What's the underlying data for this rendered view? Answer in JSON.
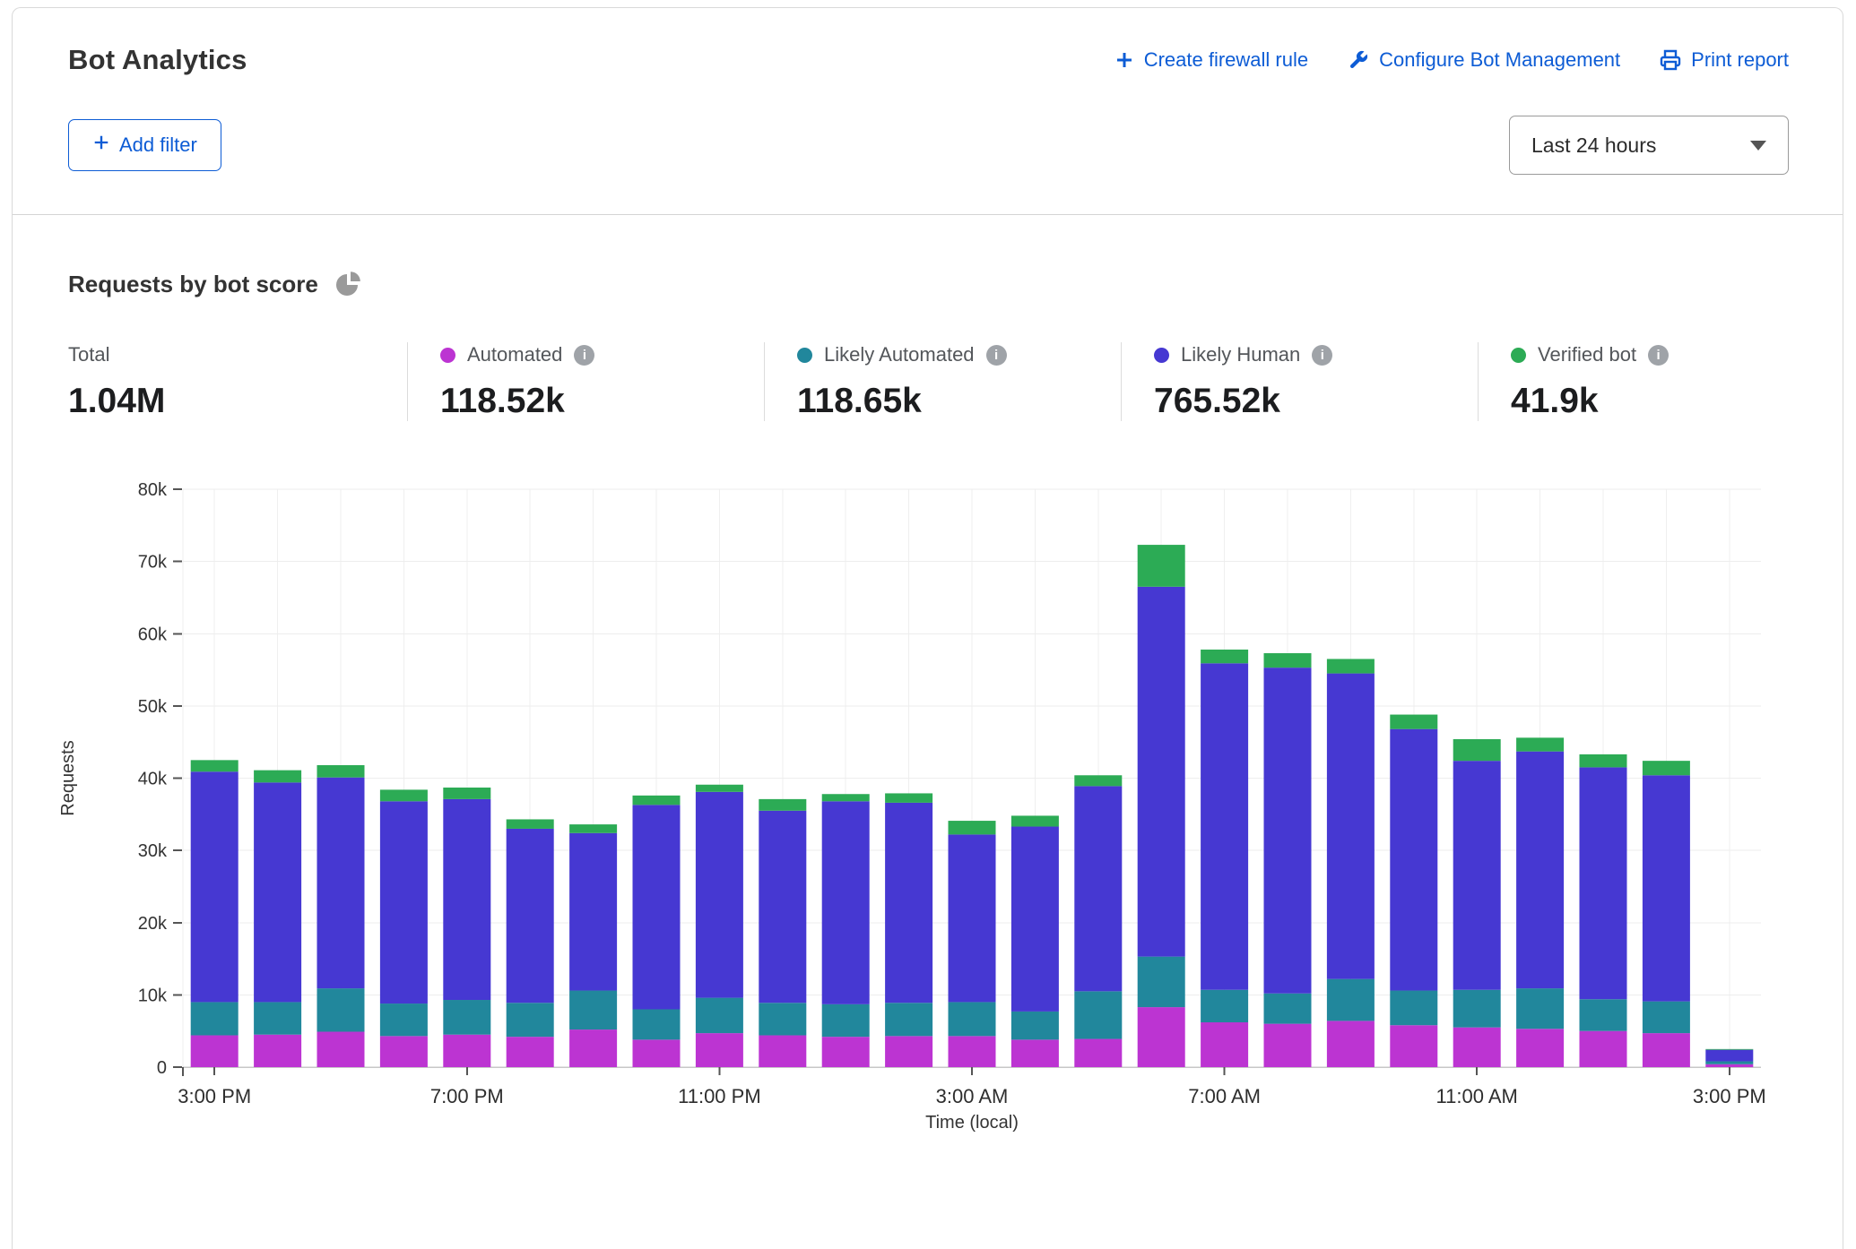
{
  "header": {
    "title": "Bot Analytics",
    "actions": [
      {
        "label": "Create firewall rule",
        "icon": "plus-icon"
      },
      {
        "label": "Configure Bot Management",
        "icon": "wrench-icon"
      },
      {
        "label": "Print report",
        "icon": "printer-icon"
      }
    ],
    "add_filter_label": "Add filter",
    "time_range": "Last 24 hours"
  },
  "section": {
    "heading": "Requests by bot score",
    "heading_icon": "pie-chart-icon"
  },
  "icons": {
    "info_glyph": "i"
  },
  "stats": [
    {
      "label": "Total",
      "value": "1.04M",
      "color": ""
    },
    {
      "label": "Automated",
      "value": "118.52k",
      "color": "#bc34d2"
    },
    {
      "label": "Likely Automated",
      "value": "118.65k",
      "color": "#21879c"
    },
    {
      "label": "Likely Human",
      "value": "765.52k",
      "color": "#4638d2"
    },
    {
      "label": "Verified bot",
      "value": "41.9k",
      "color": "#2cab55"
    }
  ],
  "chart_data": {
    "type": "bar",
    "stacked": true,
    "title": "Requests by bot score",
    "xlabel": "Time (local)",
    "ylabel": "Requests",
    "unit": "thousands of requests per hour",
    "ylim_k": [
      0,
      80
    ],
    "y_ticks": [
      "0",
      "10k",
      "20k",
      "30k",
      "40k",
      "50k",
      "60k",
      "70k",
      "80k"
    ],
    "x_tick_every": 4,
    "x_tick_labels": [
      "3:00 PM",
      "7:00 PM",
      "11:00 PM",
      "3:00 AM",
      "7:00 AM",
      "11:00 AM",
      "3:00 PM"
    ],
    "grid": true,
    "legend_position": "stats-row-above",
    "categories": [
      "3:00 PM",
      "4:00 PM",
      "5:00 PM",
      "6:00 PM",
      "7:00 PM",
      "8:00 PM",
      "9:00 PM",
      "10:00 PM",
      "11:00 PM",
      "12:00 AM",
      "1:00 AM",
      "2:00 AM",
      "3:00 AM",
      "4:00 AM",
      "5:00 AM",
      "6:00 AM",
      "7:00 AM",
      "8:00 AM",
      "9:00 AM",
      "10:00 AM",
      "11:00 AM",
      "12:00 PM",
      "1:00 PM",
      "2:00 PM",
      "3:00 PM"
    ],
    "series": [
      {
        "name": "Automated",
        "color": "#bc34d2",
        "values_k": [
          4.4,
          4.5,
          4.9,
          4.3,
          4.5,
          4.2,
          5.2,
          3.8,
          4.7,
          4.4,
          4.2,
          4.3,
          4.3,
          3.8,
          3.9,
          8.3,
          6.2,
          6.0,
          6.4,
          5.8,
          5.5,
          5.3,
          5.0,
          4.7,
          0.4
        ]
      },
      {
        "name": "Likely Automated",
        "color": "#21879c",
        "values_k": [
          4.6,
          4.5,
          6.0,
          4.5,
          4.8,
          4.7,
          5.4,
          4.2,
          4.9,
          4.5,
          4.5,
          4.6,
          4.7,
          3.9,
          6.6,
          7.0,
          4.5,
          4.2,
          5.8,
          4.8,
          5.2,
          5.6,
          4.4,
          4.4,
          0.4
        ]
      },
      {
        "name": "Likely Human",
        "color": "#4638d2",
        "values_k": [
          31.9,
          30.4,
          29.2,
          28.0,
          27.8,
          24.1,
          21.8,
          28.3,
          28.5,
          26.6,
          28.1,
          27.7,
          23.2,
          25.6,
          28.4,
          51.2,
          45.2,
          45.1,
          42.3,
          36.2,
          31.7,
          32.8,
          32.1,
          31.3,
          1.6
        ]
      },
      {
        "name": "Verified bot",
        "color": "#2cab55",
        "values_k": [
          1.6,
          1.7,
          1.7,
          1.6,
          1.6,
          1.3,
          1.2,
          1.3,
          1.0,
          1.6,
          1.0,
          1.3,
          1.9,
          1.5,
          1.5,
          5.8,
          1.9,
          2.0,
          2.0,
          2.0,
          3.0,
          1.9,
          1.8,
          2.0,
          0.1
        ]
      }
    ]
  }
}
